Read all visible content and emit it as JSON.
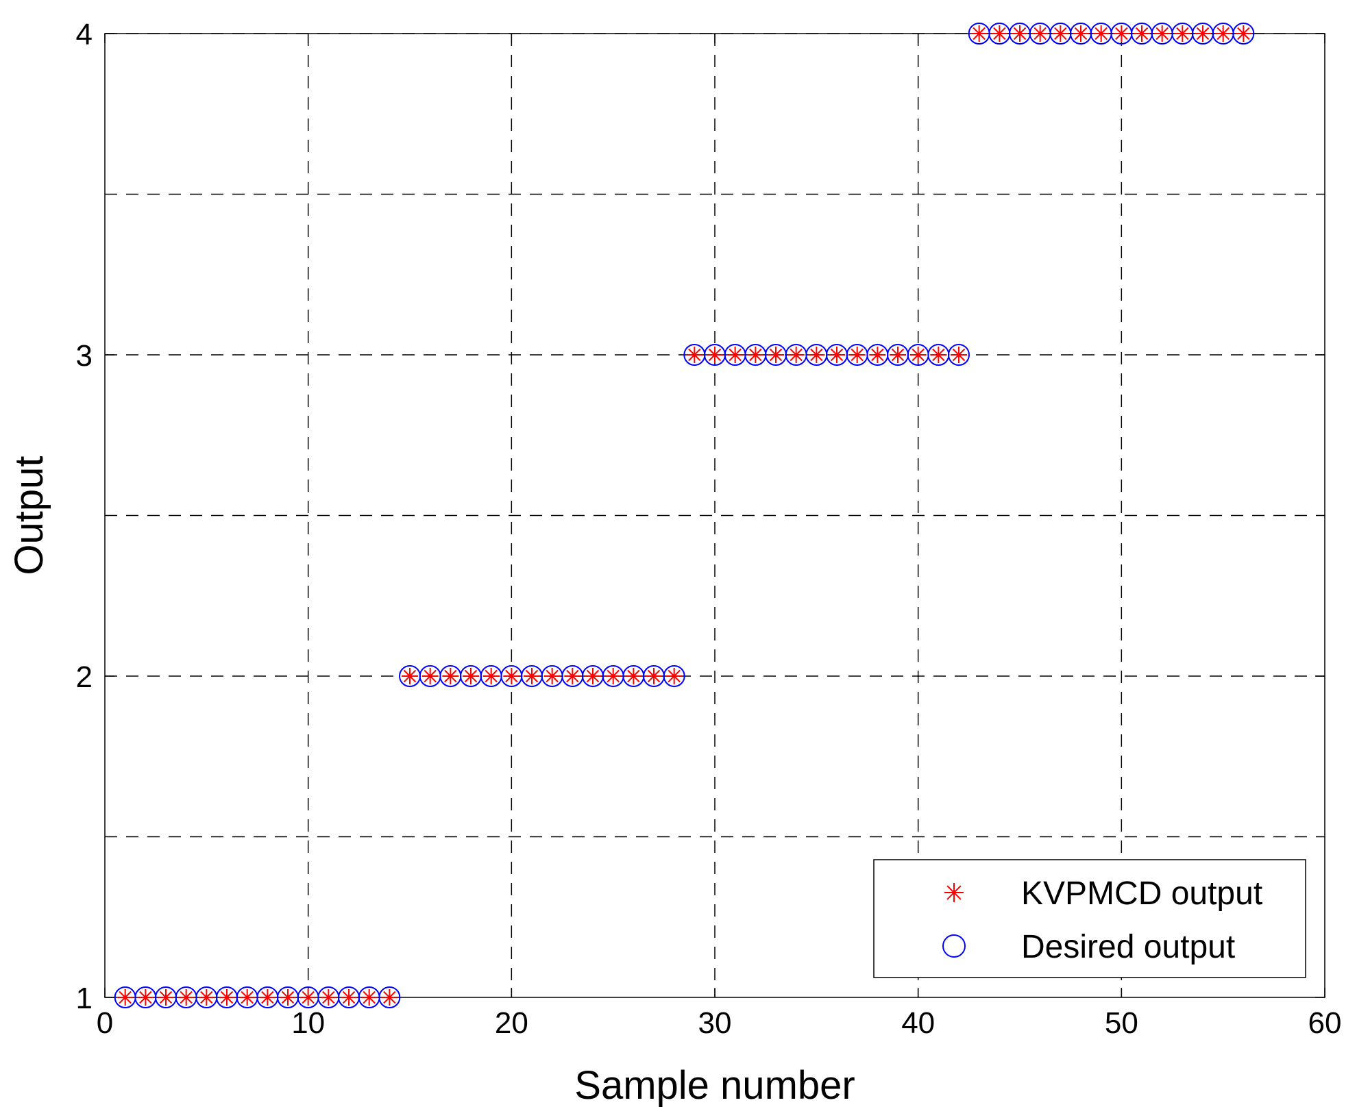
{
  "chart_data": {
    "type": "scatter",
    "title": "",
    "xlabel": "Sample number",
    "ylabel": "Output",
    "xlim": [
      0,
      60
    ],
    "ylim": [
      1,
      4
    ],
    "xticks": [
      0,
      10,
      20,
      30,
      40,
      50,
      60
    ],
    "yticks": [
      1,
      2,
      3,
      4
    ],
    "grid": true,
    "legend_position": "bottom-right",
    "colors": {
      "kvpmcd": "#ff0000",
      "desired": "#0000ff"
    },
    "series": [
      {
        "name": "KVPMCD output",
        "marker": "asterisk",
        "color": "#ff0000",
        "x": [
          1,
          2,
          3,
          4,
          5,
          6,
          7,
          8,
          9,
          10,
          11,
          12,
          13,
          14,
          15,
          16,
          17,
          18,
          19,
          20,
          21,
          22,
          23,
          24,
          25,
          26,
          27,
          28,
          29,
          30,
          31,
          32,
          33,
          34,
          35,
          36,
          37,
          38,
          39,
          40,
          41,
          42,
          43,
          44,
          45,
          46,
          47,
          48,
          49,
          50,
          51,
          52,
          53,
          54,
          55,
          56
        ],
        "y": [
          1,
          1,
          1,
          1,
          1,
          1,
          1,
          1,
          1,
          1,
          1,
          1,
          1,
          1,
          2,
          2,
          2,
          2,
          2,
          2,
          2,
          2,
          2,
          2,
          2,
          2,
          2,
          2,
          3,
          3,
          3,
          3,
          3,
          3,
          3,
          3,
          3,
          3,
          3,
          3,
          3,
          3,
          4,
          4,
          4,
          4,
          4,
          4,
          4,
          4,
          4,
          4,
          4,
          4,
          4,
          4
        ]
      },
      {
        "name": "Desired output",
        "marker": "circle",
        "color": "#0000ff",
        "x": [
          1,
          2,
          3,
          4,
          5,
          6,
          7,
          8,
          9,
          10,
          11,
          12,
          13,
          14,
          15,
          16,
          17,
          18,
          19,
          20,
          21,
          22,
          23,
          24,
          25,
          26,
          27,
          28,
          29,
          30,
          31,
          32,
          33,
          34,
          35,
          36,
          37,
          38,
          39,
          40,
          41,
          42,
          43,
          44,
          45,
          46,
          47,
          48,
          49,
          50,
          51,
          52,
          53,
          54,
          55,
          56
        ],
        "y": [
          1,
          1,
          1,
          1,
          1,
          1,
          1,
          1,
          1,
          1,
          1,
          1,
          1,
          1,
          2,
          2,
          2,
          2,
          2,
          2,
          2,
          2,
          2,
          2,
          2,
          2,
          2,
          2,
          3,
          3,
          3,
          3,
          3,
          3,
          3,
          3,
          3,
          3,
          3,
          3,
          3,
          3,
          4,
          4,
          4,
          4,
          4,
          4,
          4,
          4,
          4,
          4,
          4,
          4,
          4,
          4
        ]
      }
    ]
  }
}
